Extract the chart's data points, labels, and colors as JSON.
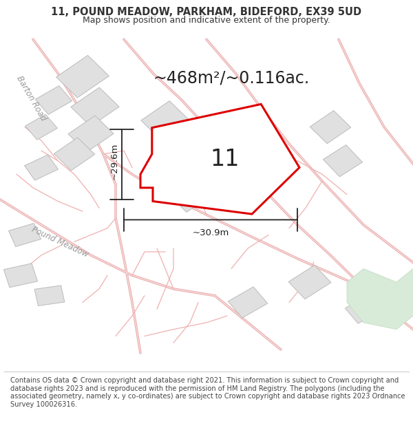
{
  "title_line1": "11, POUND MEADOW, PARKHAM, BIDEFORD, EX39 5UD",
  "title_line2": "Map shows position and indicative extent of the property.",
  "area_text": "~468m²/~0.116ac.",
  "plot_number": "11",
  "dim_vertical": "~29.6m",
  "dim_horizontal": "~30.9m",
  "footer_text": "Contains OS data © Crown copyright and database right 2021. This information is subject to Crown copyright and database rights 2023 and is reproduced with the permission of HM Land Registry. The polygons (including the associated geometry, namely x, y co-ordinates) are subject to Crown copyright and database rights 2023 Ordnance Survey 100026316.",
  "bg_color": "#ffffff",
  "map_bg": "#ffffff",
  "road_line_color": "#f0b0b0",
  "road_fill_color": "#f5d5d5",
  "building_fill": "#e0e0e0",
  "building_edge": "#bbbbbb",
  "plot_stroke": "#dd0000",
  "plot_fill": "#ffffff",
  "green_fill": "#d8ead8",
  "green_edge": "#c0d8c0",
  "dim_color": "#222222",
  "text_color": "#333333",
  "label_color": "#999999"
}
